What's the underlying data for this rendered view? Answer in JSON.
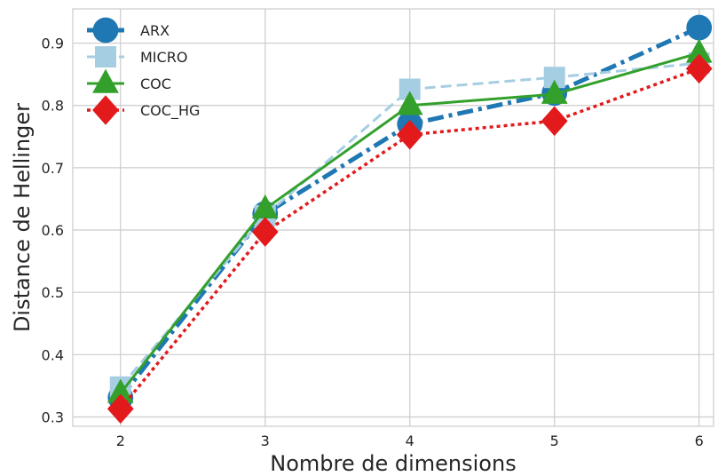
{
  "chart_data": {
    "type": "line",
    "xlabel": "Nombre de dimensions",
    "ylabel": "Distance de Hellinger",
    "x": [
      2,
      3,
      4,
      5,
      6
    ],
    "xlim": [
      1.67,
      6.1
    ],
    "ylim": [
      0.285,
      0.955
    ],
    "xticks": [
      2,
      3,
      4,
      5,
      6
    ],
    "yticks": [
      0.3,
      0.4,
      0.5,
      0.6,
      0.7,
      0.8,
      0.9
    ],
    "grid": true,
    "legend_position": "top-left",
    "series": [
      {
        "name": "ARX",
        "values": [
          0.331,
          0.626,
          0.77,
          0.82,
          0.925
        ],
        "color": "#1f78b4",
        "dash": "dashdot",
        "marker": "circle"
      },
      {
        "name": "MICRO",
        "values": [
          0.348,
          0.623,
          0.826,
          0.845,
          0.868
        ],
        "color": "#a6cee3",
        "dash": "dashed",
        "marker": "square"
      },
      {
        "name": "COC",
        "values": [
          0.338,
          0.634,
          0.8,
          0.818,
          0.884
        ],
        "color": "#33a02c",
        "dash": "solid",
        "marker": "triangle"
      },
      {
        "name": "COC_HG",
        "values": [
          0.313,
          0.597,
          0.753,
          0.775,
          0.859
        ],
        "color": "#e31a1c",
        "dash": "dotted",
        "marker": "diamond"
      }
    ]
  }
}
